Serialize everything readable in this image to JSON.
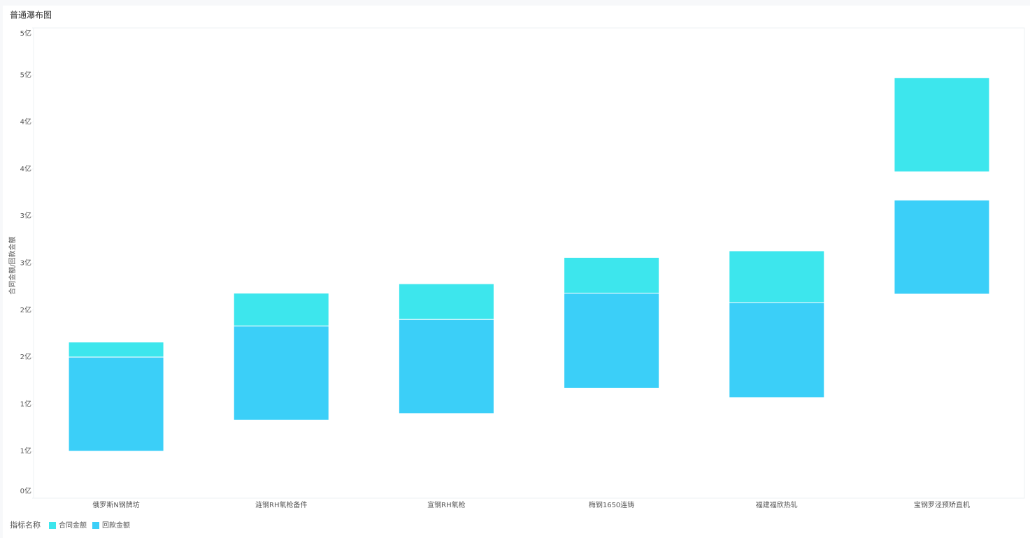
{
  "chart_data": {
    "type": "floating-bar",
    "title": "普通瀑布图",
    "y_label": "合同金额/回款金额",
    "categories": [
      "俄罗斯N钢牌坊",
      "涟钢RH氧枪备件",
      "宣钢RH氧枪",
      "梅钢1650连铸",
      "福建福欣热轧",
      "宝钢罗泾预矫直机"
    ],
    "legend_title": "指标名称",
    "series": [
      {
        "name": "合同金额",
        "color": "#3de6ed",
        "values": [
          [
            1.5,
            1.66
          ],
          [
            1.83,
            2.18
          ],
          [
            1.9,
            2.28
          ],
          [
            2.18,
            2.56
          ],
          [
            2.08,
            2.63
          ],
          [
            3.47,
            4.47
          ]
        ]
      },
      {
        "name": "回款金额",
        "color": "#3bcff8",
        "values": [
          [
            0.5,
            1.5
          ],
          [
            0.83,
            1.83
          ],
          [
            0.9,
            1.9
          ],
          [
            1.17,
            2.18
          ],
          [
            1.07,
            2.08
          ],
          [
            2.17,
            3.17
          ]
        ]
      }
    ],
    "ylim": [
      0,
      5
    ],
    "yticks": [
      {
        "value": 0,
        "label": "0亿"
      },
      {
        "value": 0.5,
        "label": "1亿"
      },
      {
        "value": 1,
        "label": "1亿"
      },
      {
        "value": 1.5,
        "label": "2亿"
      },
      {
        "value": 2,
        "label": "2亿"
      },
      {
        "value": 2.5,
        "label": "3亿"
      },
      {
        "value": 3,
        "label": "3亿"
      },
      {
        "value": 3.5,
        "label": "4亿"
      },
      {
        "value": 4,
        "label": "4亿"
      },
      {
        "value": 4.5,
        "label": "5亿"
      },
      {
        "value": 5,
        "label": "5亿"
      }
    ],
    "grid": false
  }
}
